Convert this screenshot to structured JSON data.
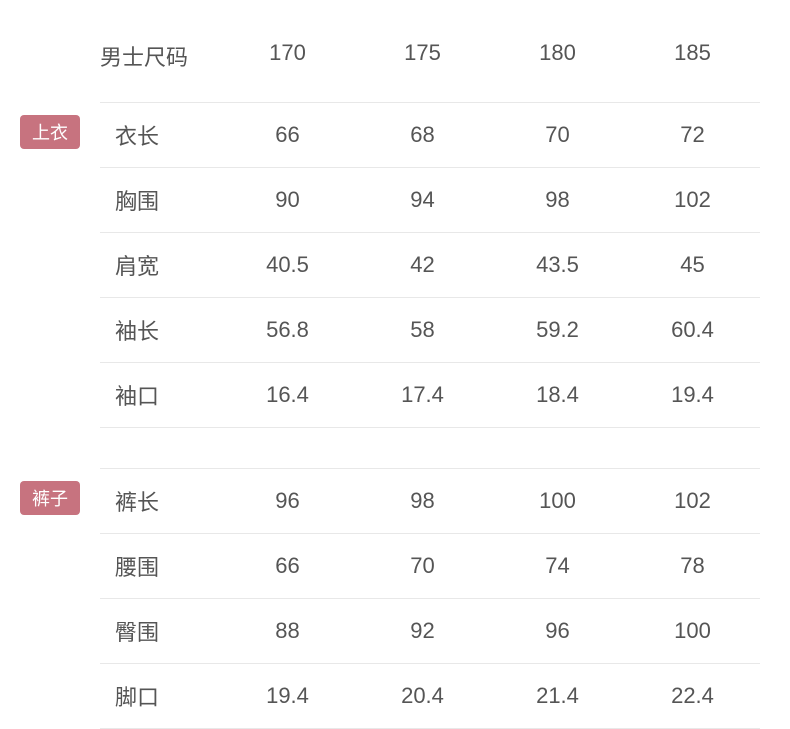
{
  "header": {
    "title": "男士尺码",
    "sizes": [
      "170",
      "175",
      "180",
      "185"
    ]
  },
  "sections": [
    {
      "badge": "上衣",
      "rows": [
        {
          "label": "衣长",
          "values": [
            "66",
            "68",
            "70",
            "72"
          ]
        },
        {
          "label": "胸围",
          "values": [
            "90",
            "94",
            "98",
            "102"
          ]
        },
        {
          "label": "肩宽",
          "values": [
            "40.5",
            "42",
            "43.5",
            "45"
          ]
        },
        {
          "label": "袖长",
          "values": [
            "56.8",
            "58",
            "59.2",
            "60.4"
          ]
        },
        {
          "label": "袖口",
          "values": [
            "16.4",
            "17.4",
            "18.4",
            "19.4"
          ]
        }
      ]
    },
    {
      "badge": "裤子",
      "rows": [
        {
          "label": "裤长",
          "values": [
            "96",
            "98",
            "100",
            "102"
          ]
        },
        {
          "label": "腰围",
          "values": [
            "66",
            "70",
            "74",
            "78"
          ]
        },
        {
          "label": "臀围",
          "values": [
            "88",
            "92",
            "96",
            "100"
          ]
        },
        {
          "label": "脚口",
          "values": [
            "19.4",
            "20.4",
            "21.4",
            "22.4"
          ]
        }
      ]
    }
  ],
  "style": {
    "badge_bg": "#c7737f",
    "badge_fg": "#ffffff",
    "text_color": "#555555",
    "border_color": "#e8e8e8",
    "font_size": 22
  }
}
